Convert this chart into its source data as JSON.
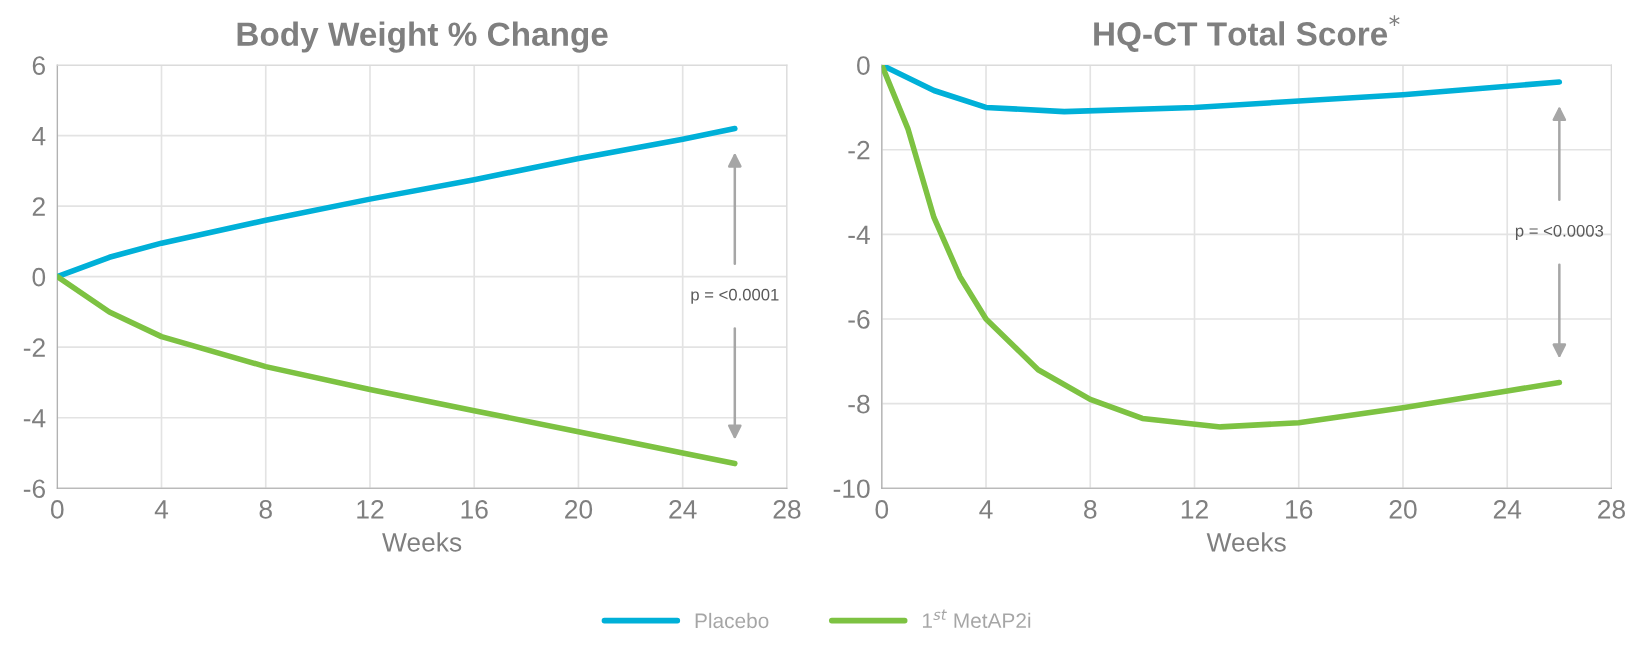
{
  "chart_data": [
    {
      "type": "line",
      "title": "Body Weight % Change",
      "xlabel": "Weeks",
      "xlim": [
        0,
        28
      ],
      "xticks": [
        0,
        4,
        8,
        12,
        16,
        20,
        24,
        28
      ],
      "ylim": [
        -6,
        6
      ],
      "yticks": [
        -6,
        -4,
        -2,
        0,
        2,
        4,
        6
      ],
      "grid": true,
      "legend": "bottom",
      "marker": "none",
      "line_style": "solid",
      "annotations": [
        "p = <0.0001"
      ],
      "series": [
        {
          "name": "Placebo",
          "color": "#00b0d8",
          "x": [
            0,
            2,
            4,
            8,
            12,
            16,
            20,
            24,
            26
          ],
          "values": [
            0,
            0.55,
            0.95,
            1.6,
            2.2,
            2.75,
            3.35,
            3.9,
            4.2
          ]
        },
        {
          "name": "1$^{st}$ MetAP2i",
          "color": "#7dc242",
          "x": [
            0,
            2,
            4,
            8,
            12,
            16,
            20,
            24,
            26
          ],
          "values": [
            0,
            -1.0,
            -1.7,
            -2.55,
            -3.2,
            -3.8,
            -4.4,
            -5.0,
            -5.3
          ]
        }
      ]
    },
    {
      "type": "line",
      "title": "HQ-CT Total Score$^{*}$",
      "xlabel": "Weeks",
      "xlim": [
        0,
        28
      ],
      "xticks": [
        0,
        4,
        8,
        12,
        16,
        20,
        24,
        28
      ],
      "ylim": [
        -10,
        0
      ],
      "yticks": [
        -10,
        -8,
        -6,
        -4,
        -2,
        0
      ],
      "grid": true,
      "marker": "none",
      "line_style": "solid",
      "annotations": [
        "p = <0.0003"
      ],
      "series": [
        {
          "color": "#00b0d8",
          "x": [
            0,
            2,
            4,
            7,
            12,
            16,
            20,
            26
          ],
          "values": [
            0,
            -0.6,
            -1.0,
            -1.1,
            -1.0,
            -0.85,
            -0.7,
            -0.4
          ]
        },
        {
          "color": "#7dc242",
          "x": [
            0,
            1,
            2,
            3,
            4,
            6,
            8,
            10,
            13,
            16,
            20,
            24,
            26
          ],
          "values": [
            0,
            -1.5,
            -3.6,
            -5.0,
            -6.0,
            -7.2,
            -7.9,
            -8.35,
            -8.55,
            -8.45,
            -8.1,
            -7.7,
            -7.5
          ]
        }
      ]
    }
  ]
}
